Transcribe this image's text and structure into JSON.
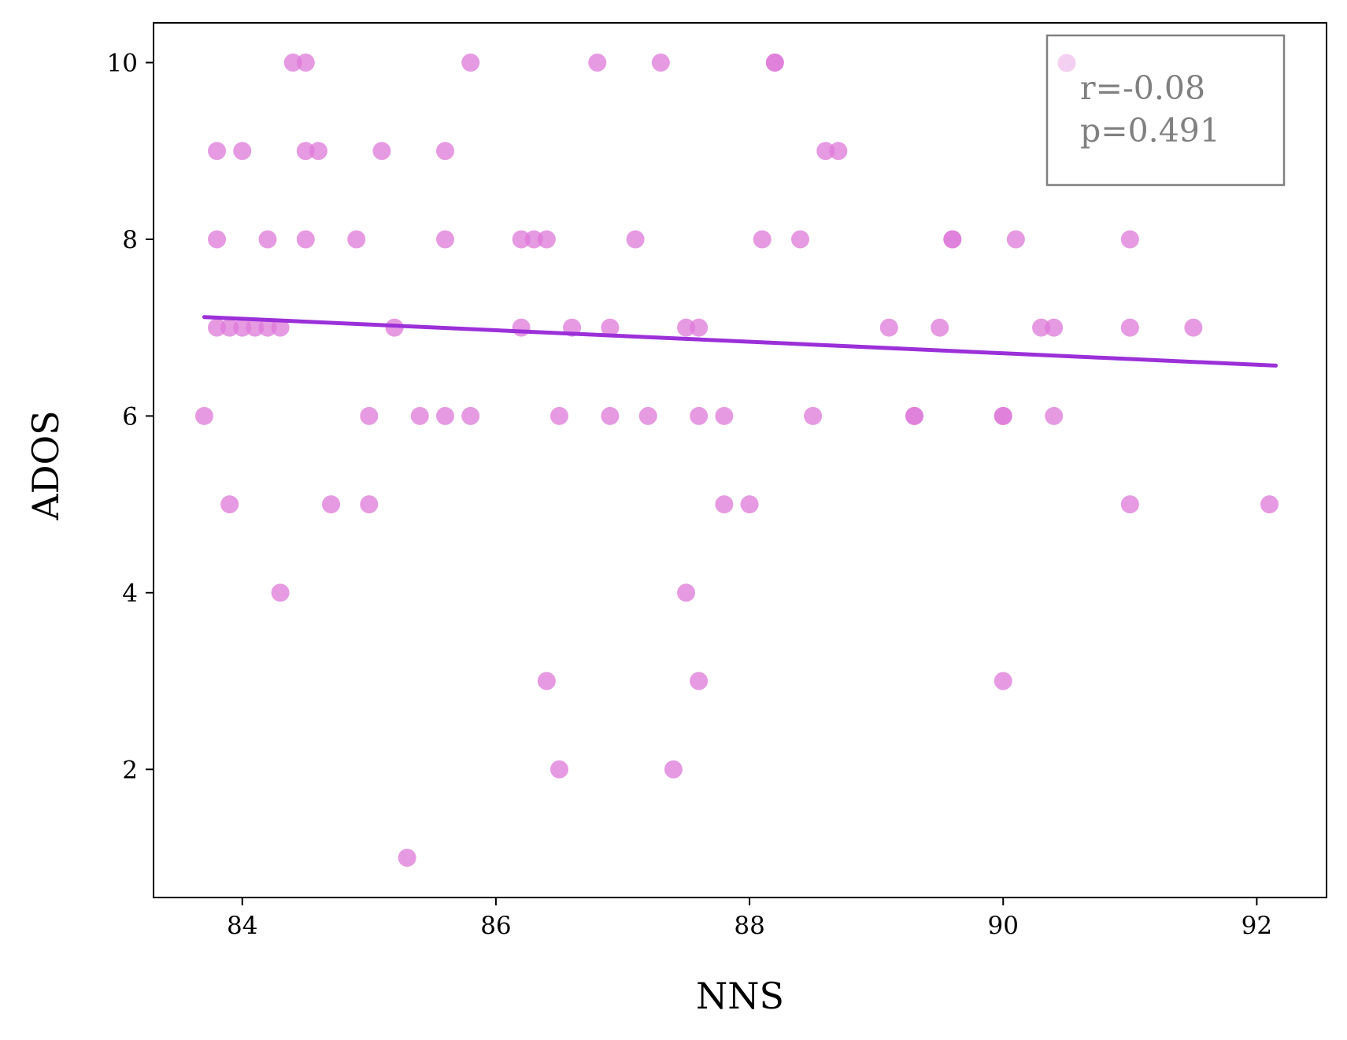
{
  "chart_data": {
    "type": "scatter",
    "xlabel": "NNS",
    "ylabel": "ADOS",
    "xlim": [
      83.3,
      92.55
    ],
    "ylim": [
      0.55,
      10.45
    ],
    "xticks": [
      84,
      86,
      88,
      90,
      92
    ],
    "yticks": [
      2,
      4,
      6,
      8,
      10
    ],
    "grid": false,
    "legend_position": "top-right",
    "legend_lines": [
      "r=-0.08",
      "p=0.491"
    ],
    "colors": {
      "points": "#dd78d8",
      "fit_line": "#9b30d9",
      "legend_border": "#808080",
      "legend_text": "#808080"
    },
    "point_alpha": 0.75,
    "series": [
      {
        "points": [
          [
            84.4,
            10
          ],
          [
            84.5,
            10
          ],
          [
            85.8,
            10
          ],
          [
            86.8,
            10
          ],
          [
            87.3,
            10
          ],
          [
            88.2,
            10
          ],
          [
            88.2,
            10
          ],
          [
            83.8,
            9
          ],
          [
            84.0,
            9
          ],
          [
            84.5,
            9
          ],
          [
            84.6,
            9
          ],
          [
            85.1,
            9
          ],
          [
            85.6,
            9
          ],
          [
            88.6,
            9
          ],
          [
            88.7,
            9
          ],
          [
            83.8,
            8
          ],
          [
            84.2,
            8
          ],
          [
            84.5,
            8
          ],
          [
            84.9,
            8
          ],
          [
            85.6,
            8
          ],
          [
            86.2,
            8
          ],
          [
            86.3,
            8
          ],
          [
            86.4,
            8
          ],
          [
            87.1,
            8
          ],
          [
            88.1,
            8
          ],
          [
            88.4,
            8
          ],
          [
            89.6,
            8
          ],
          [
            89.6,
            8
          ],
          [
            90.1,
            8
          ],
          [
            91.0,
            8
          ],
          [
            83.8,
            7
          ],
          [
            83.9,
            7
          ],
          [
            84.0,
            7
          ],
          [
            84.1,
            7
          ],
          [
            84.2,
            7
          ],
          [
            84.3,
            7
          ],
          [
            85.2,
            7
          ],
          [
            86.2,
            7
          ],
          [
            86.6,
            7
          ],
          [
            86.9,
            7
          ],
          [
            87.5,
            7
          ],
          [
            87.6,
            7
          ],
          [
            89.1,
            7
          ],
          [
            89.5,
            7
          ],
          [
            90.3,
            7
          ],
          [
            90.4,
            7
          ],
          [
            91.0,
            7
          ],
          [
            91.5,
            7
          ],
          [
            83.7,
            6
          ],
          [
            85.0,
            6
          ],
          [
            85.4,
            6
          ],
          [
            85.6,
            6
          ],
          [
            85.8,
            6
          ],
          [
            86.5,
            6
          ],
          [
            86.9,
            6
          ],
          [
            87.2,
            6
          ],
          [
            87.6,
            6
          ],
          [
            87.8,
            6
          ],
          [
            88.5,
            6
          ],
          [
            89.3,
            6
          ],
          [
            89.3,
            6
          ],
          [
            90.0,
            6
          ],
          [
            90.0,
            6
          ],
          [
            90.4,
            6
          ],
          [
            83.9,
            5
          ],
          [
            84.7,
            5
          ],
          [
            85.0,
            5
          ],
          [
            87.8,
            5
          ],
          [
            88.0,
            5
          ],
          [
            91.0,
            5
          ],
          [
            92.1,
            5
          ],
          [
            84.3,
            4
          ],
          [
            87.5,
            4
          ],
          [
            86.4,
            3
          ],
          [
            87.6,
            3
          ],
          [
            90.0,
            3
          ],
          [
            86.5,
            2
          ],
          [
            87.4,
            2
          ],
          [
            85.3,
            1
          ]
        ]
      }
    ],
    "fit_line": {
      "x": [
        83.7,
        92.15
      ],
      "y": [
        7.12,
        6.57
      ]
    }
  }
}
